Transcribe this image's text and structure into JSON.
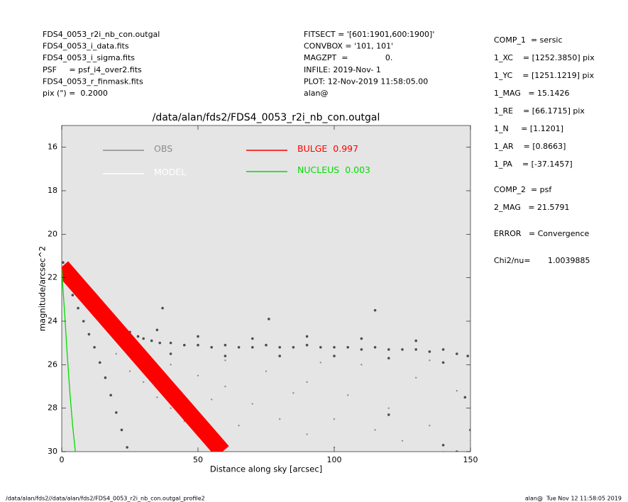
{
  "header": {
    "left": [
      "FDS4_0053_r2i_nb_con.outgal",
      "FDS4_0053_i_data.fits",
      "FDS4_0053_i_sigma.fits",
      "PSF     = psf_i4_over2.fits",
      "FDS4_0053_r_finmask.fits",
      "pix (\") =  0.2000"
    ],
    "middle": [
      "FITSECT = '[601:1901,600:1900]'",
      "CONVBOX = '101, 101'",
      "MAGZPT  =               0.",
      "INFILE: 2019-Nov- 1",
      "PLOT: 12-Nov-2019 11:58:05.00",
      "alan@"
    ],
    "right": [
      "COMP_1  = sersic",
      "1_XC    = [1252.3850] pix",
      "1_YC    = [1251.1219] pix",
      "1_MAG   = 15.1426",
      "1_RE    = [66.1715] pix",
      "1_N     = [1.1201]",
      "1_AR    = [0.8663]",
      "1_PA    = [-37.1457]",
      "COMP_2  = psf",
      "2_MAG   = 21.5791",
      "ERROR   = Convergence",
      "Chi2/nu=       1.0039885"
    ]
  },
  "footer": {
    "left": "/data/alan/fds2//data/alan/fds2/FDS4_0053_r2i_nb_con.outgal_profile2",
    "right": "alan@  Tue Nov 12 11:58:05 2019"
  },
  "chart_data": {
    "type": "scatter",
    "title": "/data/alan/fds2/FDS4_0053_r2i_nb_con.outgal",
    "x_label": "Distance along sky [arcsec]",
    "y_label": "magnitude/arcsec^2",
    "xlim": [
      0,
      150
    ],
    "xticks": [
      0,
      50,
      100,
      150
    ],
    "ylim": [
      30,
      15
    ],
    "yticks": [
      16,
      18,
      20,
      22,
      24,
      26,
      28,
      30
    ],
    "background": "#e5e5e5",
    "series": [
      {
        "name": "OBS",
        "kind": "points",
        "color": "#4d4d4d",
        "legend_color": "#8c8c8c",
        "x": [
          0.5,
          1,
          2,
          3,
          4,
          6,
          8,
          10,
          12,
          14,
          16,
          18,
          20,
          22,
          25,
          28,
          30,
          33,
          36,
          40,
          45,
          50,
          55,
          60,
          65,
          70,
          75,
          80,
          85,
          90,
          95,
          100,
          105,
          110,
          115,
          120,
          125,
          130,
          135,
          140,
          145,
          149,
          35,
          50,
          70,
          90,
          110,
          130,
          40,
          60,
          80,
          100,
          120,
          140,
          4,
          6,
          8,
          10,
          12,
          14,
          16,
          18,
          20,
          22,
          24,
          37,
          76,
          115,
          148,
          150,
          140,
          120,
          145
        ],
        "values": [
          21.3,
          21.5,
          21.6,
          21.8,
          21.9,
          22.2,
          22.5,
          22.8,
          23.1,
          23.4,
          23.6,
          23.9,
          24.1,
          24.3,
          24.5,
          24.7,
          24.8,
          24.9,
          25.0,
          25.0,
          25.1,
          25.1,
          25.2,
          25.1,
          25.2,
          25.2,
          25.1,
          25.2,
          25.2,
          25.1,
          25.2,
          25.2,
          25.2,
          25.3,
          25.2,
          25.3,
          25.3,
          25.3,
          25.4,
          25.3,
          25.5,
          25.6,
          24.4,
          24.7,
          24.8,
          24.7,
          24.8,
          24.9,
          25.5,
          25.6,
          25.6,
          25.6,
          25.7,
          25.9,
          22.8,
          23.4,
          24.0,
          24.6,
          25.2,
          25.9,
          26.6,
          27.4,
          28.2,
          29.0,
          29.8,
          23.4,
          23.9,
          23.5,
          27.5,
          29.0,
          29.7,
          28.3,
          30.0
        ]
      },
      {
        "name": "MODEL",
        "kind": "points",
        "color": "#8f8f8f",
        "legend_color": "#ffffff",
        "x": [
          20,
          25,
          30,
          35,
          40,
          45,
          50,
          55,
          30,
          40,
          50,
          60,
          70,
          80,
          90,
          100,
          60,
          75,
          90,
          105,
          120,
          135,
          150,
          110,
          130,
          145,
          65,
          85,
          100,
          125,
          140,
          55,
          95,
          115,
          135
        ],
        "values": [
          25.5,
          26.3,
          26.8,
          27.5,
          28.0,
          28.6,
          29.2,
          29.8,
          25.3,
          26.0,
          26.5,
          27.0,
          27.8,
          28.5,
          29.2,
          29.8,
          25.8,
          26.3,
          26.8,
          27.4,
          28.0,
          28.8,
          29.5,
          26.0,
          26.6,
          27.2,
          28.8,
          27.3,
          28.5,
          29.5,
          30.0,
          27.6,
          25.9,
          29.0,
          25.8
        ]
      },
      {
        "name": "BULGE",
        "kind": "band",
        "color": "#ff0000",
        "legend_color": "#ff0000",
        "fraction": 0.997,
        "x": [
          0,
          59
        ],
        "values": [
          21.5,
          30
        ]
      },
      {
        "name": "NUCLEUS",
        "kind": "line",
        "color": "#00dd00",
        "legend_color": "#00dd00",
        "fraction": 0.003,
        "x": [
          0,
          0.5,
          1,
          2,
          3,
          4,
          5
        ],
        "values": [
          21.6,
          22.6,
          23.5,
          25.5,
          27.3,
          28.8,
          30
        ]
      }
    ]
  }
}
